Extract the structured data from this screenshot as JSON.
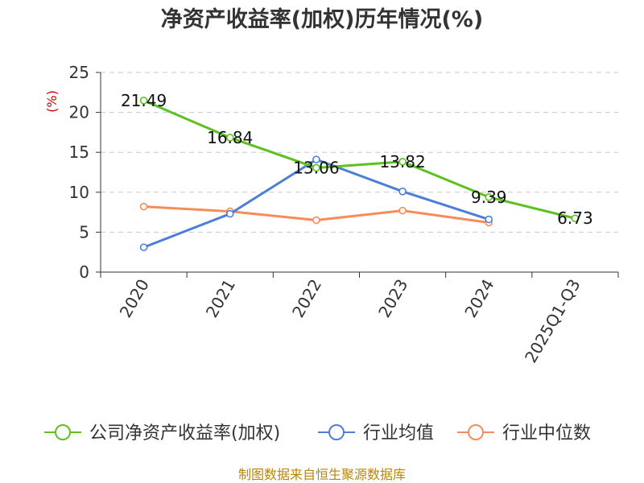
{
  "chart_data": {
    "type": "line",
    "title": "净资产收益率(加权)历年情况(%)",
    "ylabel": "(%)",
    "categories": [
      "2020",
      "2021",
      "2022",
      "2023",
      "2024",
      "2025Q1-Q3"
    ],
    "ylim": [
      0,
      25
    ],
    "yticks": [
      0,
      5,
      10,
      15,
      20,
      25
    ],
    "grid": true,
    "legend_position": "bottom",
    "series": [
      {
        "name": "公司净资产收益率(加权)",
        "color": "#5cc121",
        "values": [
          21.49,
          16.84,
          13.06,
          13.82,
          9.39,
          6.73
        ],
        "labels": [
          "21.49",
          "16.84",
          "13.06",
          "13.82",
          "9.39",
          "6.73"
        ]
      },
      {
        "name": "行业均值",
        "color": "#4d7fd7",
        "values": [
          3.1,
          7.3,
          14.1,
          10.1,
          6.6,
          null
        ]
      },
      {
        "name": "行业中位数",
        "color": "#f58c5a",
        "values": [
          8.2,
          7.6,
          6.5,
          7.7,
          6.2,
          null
        ]
      }
    ]
  },
  "footer": {
    "source": "制图数据来自恒生聚源数据库"
  }
}
